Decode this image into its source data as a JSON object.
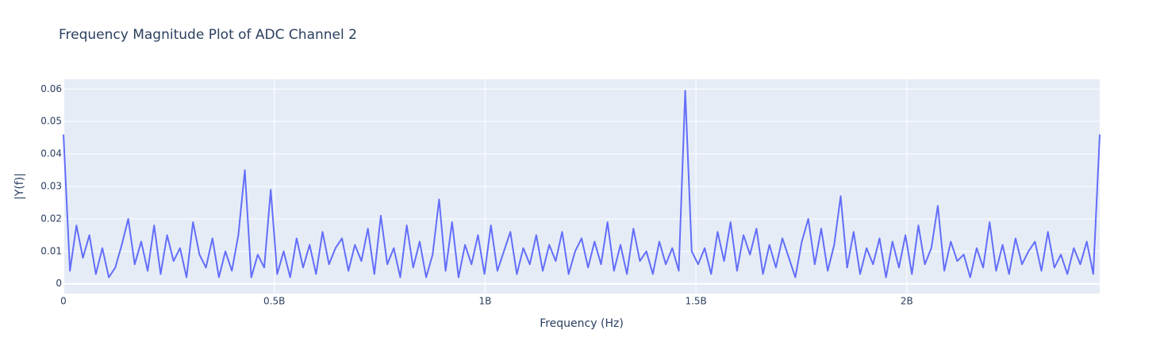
{
  "chart_data": {
    "type": "line",
    "title": "Frequency Magnitude Plot of ADC Channel 2",
    "x_label": "Frequency (Hz)",
    "y_label": "|Y(f)|",
    "color": "#636efa",
    "grid": true,
    "xlim": [
      0,
      2457600000
    ],
    "ylim": [
      -0.003,
      0.063
    ],
    "xticks": [
      0,
      {
        "value": 500000000,
        "label": "0.5B"
      },
      {
        "value": 1000000000,
        "label": "1B"
      },
      {
        "value": 1500000000,
        "label": "1.5B"
      },
      {
        "value": 2000000000,
        "label": "2B"
      }
    ],
    "yticks": [
      0,
      0.01,
      0.02,
      0.03,
      0.04,
      0.05,
      0.06
    ],
    "x": [
      0,
      15360000,
      30720000,
      46080000,
      61440000,
      76800000,
      92160000,
      107520000,
      122880000,
      138240000,
      153600000,
      168960000,
      184320000,
      199680000,
      215040000,
      230400000,
      245760000,
      261120000,
      276480000,
      291840000,
      307200000,
      322560000,
      337920000,
      353280000,
      368640000,
      384000000,
      399360000,
      414720000,
      430080000,
      445440000,
      460800000,
      476160000,
      491520000,
      506880000,
      522240000,
      537600000,
      552960000,
      568320000,
      583680000,
      599040000,
      614400000,
      629760000,
      645120000,
      660480000,
      675840000,
      691200000,
      706560000,
      721920000,
      737280000,
      752640000,
      768000000,
      783360000,
      798720000,
      814080000,
      829440000,
      844800000,
      860160000,
      875520000,
      890880000,
      906240000,
      921600000,
      936960000,
      952320000,
      967680000,
      983040000,
      998400000,
      1013760000,
      1029120000,
      1044480000,
      1059840000,
      1075200000,
      1090560000,
      1105920000,
      1121280000,
      1136640000,
      1152000000,
      1167360000,
      1182720000,
      1198080000,
      1213440000,
      1228800000,
      1244160000,
      1259520000,
      1274880000,
      1290240000,
      1305600000,
      1320960000,
      1336320000,
      1351680000,
      1367040000,
      1382400000,
      1397760000,
      1413120000,
      1428480000,
      1443840000,
      1459200000,
      1474560000,
      1489920000,
      1505280000,
      1520640000,
      1536000000,
      1551360000,
      1566720000,
      1582080000,
      1597440000,
      1612800000,
      1628160000,
      1643520000,
      1658880000,
      1674240000,
      1689600000,
      1704960000,
      1720320000,
      1735680000,
      1751040000,
      1766400000,
      1781760000,
      1797120000,
      1812480000,
      1827840000,
      1843200000,
      1858560000,
      1873920000,
      1889280000,
      1904640000,
      1920000000,
      1935360000,
      1950720000,
      1966080000,
      1981440000,
      1996800000,
      2012160000,
      2027520000,
      2042880000,
      2058240000,
      2073600000,
      2088960000,
      2104320000,
      2119680000,
      2135040000,
      2150400000,
      2165760000,
      2181120000,
      2196480000,
      2211840000,
      2227200000,
      2242560000,
      2257920000,
      2273280000,
      2288640000,
      2304000000,
      2319360000,
      2334720000,
      2350080000,
      2365440000,
      2380800000,
      2396160000,
      2411520000,
      2426880000,
      2442240000,
      2457600000
    ],
    "values": [
      0.046,
      0.004,
      0.018,
      0.008,
      0.015,
      0.003,
      0.011,
      0.002,
      0.005,
      0.012,
      0.02,
      0.006,
      0.013,
      0.004,
      0.018,
      0.003,
      0.015,
      0.007,
      0.011,
      0.002,
      0.019,
      0.009,
      0.005,
      0.014,
      0.002,
      0.01,
      0.004,
      0.015,
      0.035,
      0.002,
      0.009,
      0.005,
      0.029,
      0.003,
      0.01,
      0.002,
      0.014,
      0.005,
      0.012,
      0.003,
      0.016,
      0.006,
      0.011,
      0.014,
      0.004,
      0.012,
      0.007,
      0.017,
      0.003,
      0.021,
      0.006,
      0.011,
      0.002,
      0.018,
      0.005,
      0.013,
      0.002,
      0.009,
      0.026,
      0.004,
      0.019,
      0.002,
      0.012,
      0.006,
      0.015,
      0.003,
      0.018,
      0.004,
      0.01,
      0.016,
      0.003,
      0.011,
      0.006,
      0.015,
      0.004,
      0.012,
      0.007,
      0.016,
      0.003,
      0.01,
      0.014,
      0.005,
      0.013,
      0.006,
      0.019,
      0.004,
      0.012,
      0.003,
      0.017,
      0.007,
      0.01,
      0.003,
      0.013,
      0.006,
      0.011,
      0.004,
      0.0595,
      0.01,
      0.006,
      0.011,
      0.003,
      0.016,
      0.007,
      0.019,
      0.004,
      0.015,
      0.009,
      0.017,
      0.003,
      0.012,
      0.005,
      0.014,
      0.008,
      0.002,
      0.013,
      0.02,
      0.006,
      0.017,
      0.004,
      0.012,
      0.027,
      0.005,
      0.016,
      0.003,
      0.011,
      0.006,
      0.014,
      0.002,
      0.013,
      0.005,
      0.015,
      0.003,
      0.018,
      0.006,
      0.011,
      0.024,
      0.004,
      0.013,
      0.007,
      0.009,
      0.002,
      0.011,
      0.005,
      0.019,
      0.004,
      0.012,
      0.003,
      0.014,
      0.006,
      0.01,
      0.013,
      0.004,
      0.016,
      0.005,
      0.009,
      0.003,
      0.011,
      0.006,
      0.013,
      0.003,
      0.046
    ]
  }
}
